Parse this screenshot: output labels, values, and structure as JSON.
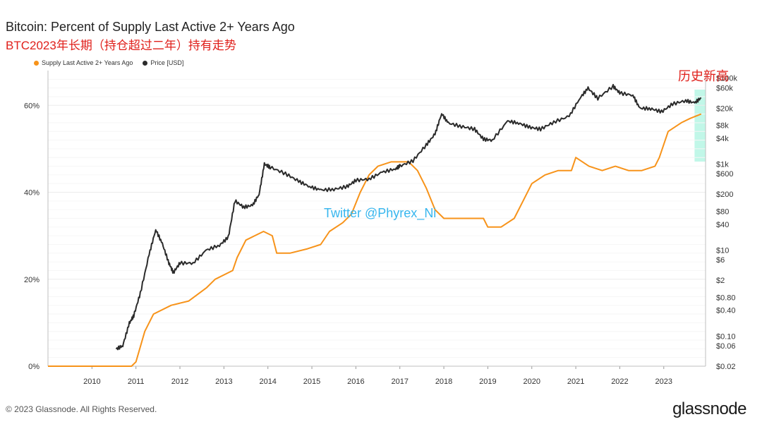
{
  "header": {
    "title": "Bitcoin: Percent of Supply Last Active 2+ Years Ago",
    "subtitle": "BTC2023年长期（持仓超过二年）持有走势"
  },
  "annotations": {
    "ath_label": "历史新高",
    "watermark": "Twitter @Phyrex_Ni"
  },
  "footer": {
    "copyright": "© 2023 Glassnode. All Rights Reserved.",
    "brand": "glassnode"
  },
  "colors": {
    "supply": "#f7931a",
    "price": "#2b2b2b",
    "highlight": "#8ef0d6",
    "annotation": "#e0201b"
  },
  "chart_data": {
    "type": "line",
    "x_axis": {
      "ticks": [
        "2010",
        "2011",
        "2012",
        "2013",
        "2014",
        "2015",
        "2016",
        "2017",
        "2018",
        "2019",
        "2020",
        "2021",
        "2022",
        "2023"
      ]
    },
    "y_left": {
      "label": "",
      "ticks": [
        "0%",
        "20%",
        "40%",
        "60%"
      ],
      "range": [
        0,
        68
      ]
    },
    "y_right": {
      "label": "",
      "scale": "log",
      "ticks": [
        "$0.02",
        "$0.06",
        "$0.10",
        "$0.40",
        "$0.80",
        "$2",
        "$6",
        "$10",
        "$40",
        "$80",
        "$200",
        "$600",
        "$1k",
        "$4k",
        "$8k",
        "$20k",
        "$60k",
        "$100k"
      ]
    },
    "legend": [
      "Supply Last Active 2+ Years Ago",
      "Price [USD]"
    ],
    "legend_placement": "top-left",
    "series": [
      {
        "name": "Supply Last Active 2+ Years Ago",
        "axis": "left",
        "points": [
          [
            2009.0,
            0
          ],
          [
            2010.0,
            0
          ],
          [
            2010.9,
            0
          ],
          [
            2011.0,
            1
          ],
          [
            2011.2,
            8
          ],
          [
            2011.4,
            12
          ],
          [
            2011.8,
            14
          ],
          [
            2012.2,
            15
          ],
          [
            2012.6,
            18
          ],
          [
            2012.8,
            20
          ],
          [
            2013.2,
            22
          ],
          [
            2013.3,
            25
          ],
          [
            2013.5,
            29
          ],
          [
            2013.7,
            30
          ],
          [
            2013.9,
            31
          ],
          [
            2014.1,
            30
          ],
          [
            2014.2,
            26
          ],
          [
            2014.5,
            26
          ],
          [
            2014.9,
            27
          ],
          [
            2015.2,
            28
          ],
          [
            2015.4,
            31
          ],
          [
            2015.7,
            33
          ],
          [
            2015.9,
            35
          ],
          [
            2016.1,
            40
          ],
          [
            2016.3,
            44
          ],
          [
            2016.5,
            46
          ],
          [
            2016.8,
            47
          ],
          [
            2017.2,
            47
          ],
          [
            2017.4,
            45
          ],
          [
            2017.6,
            41
          ],
          [
            2017.8,
            36
          ],
          [
            2018.0,
            34
          ],
          [
            2018.3,
            34
          ],
          [
            2018.6,
            34
          ],
          [
            2018.9,
            34
          ],
          [
            2019.0,
            32
          ],
          [
            2019.3,
            32
          ],
          [
            2019.6,
            34
          ],
          [
            2019.8,
            38
          ],
          [
            2020.0,
            42
          ],
          [
            2020.3,
            44
          ],
          [
            2020.6,
            45
          ],
          [
            2020.9,
            45
          ],
          [
            2021.0,
            48
          ],
          [
            2021.3,
            46
          ],
          [
            2021.6,
            45
          ],
          [
            2021.9,
            46
          ],
          [
            2022.2,
            45
          ],
          [
            2022.5,
            45
          ],
          [
            2022.8,
            46
          ],
          [
            2022.9,
            48
          ],
          [
            2023.1,
            54
          ],
          [
            2023.4,
            56
          ],
          [
            2023.6,
            57
          ],
          [
            2023.85,
            58
          ]
        ]
      },
      {
        "name": "Price [USD]",
        "axis": "right",
        "points": [
          [
            2010.55,
            0.05
          ],
          [
            2010.7,
            0.06
          ],
          [
            2010.85,
            0.2
          ],
          [
            2010.95,
            0.3
          ],
          [
            2011.1,
            1
          ],
          [
            2011.3,
            8
          ],
          [
            2011.45,
            30
          ],
          [
            2011.6,
            14
          ],
          [
            2011.75,
            5
          ],
          [
            2011.85,
            3
          ],
          [
            2012.0,
            5
          ],
          [
            2012.3,
            5
          ],
          [
            2012.6,
            10
          ],
          [
            2012.9,
            13
          ],
          [
            2013.1,
            20
          ],
          [
            2013.25,
            140
          ],
          [
            2013.45,
            100
          ],
          [
            2013.65,
            110
          ],
          [
            2013.8,
            200
          ],
          [
            2013.92,
            1000
          ],
          [
            2014.05,
            850
          ],
          [
            2014.4,
            600
          ],
          [
            2014.7,
            400
          ],
          [
            2014.95,
            300
          ],
          [
            2015.2,
            250
          ],
          [
            2015.5,
            260
          ],
          [
            2015.8,
            300
          ],
          [
            2016.0,
            420
          ],
          [
            2016.3,
            450
          ],
          [
            2016.6,
            650
          ],
          [
            2016.9,
            780
          ],
          [
            2017.0,
            900
          ],
          [
            2017.3,
            1200
          ],
          [
            2017.6,
            2800
          ],
          [
            2017.8,
            5000
          ],
          [
            2017.95,
            15000
          ],
          [
            2018.1,
            9000
          ],
          [
            2018.4,
            7500
          ],
          [
            2018.7,
            6500
          ],
          [
            2018.9,
            3800
          ],
          [
            2019.1,
            3600
          ],
          [
            2019.45,
            10000
          ],
          [
            2019.7,
            9000
          ],
          [
            2019.95,
            7200
          ],
          [
            2020.2,
            6500
          ],
          [
            2020.5,
            9500
          ],
          [
            2020.85,
            13000
          ],
          [
            2021.1,
            35000
          ],
          [
            2021.28,
            58000
          ],
          [
            2021.5,
            34000
          ],
          [
            2021.85,
            65000
          ],
          [
            2022.0,
            45000
          ],
          [
            2022.3,
            40000
          ],
          [
            2022.45,
            20000
          ],
          [
            2022.7,
            19500
          ],
          [
            2022.95,
            16500
          ],
          [
            2023.2,
            25000
          ],
          [
            2023.5,
            30000
          ],
          [
            2023.7,
            26500
          ],
          [
            2023.85,
            35000
          ]
        ]
      }
    ],
    "highlight_range": [
      2023.7,
      2023.95
    ]
  }
}
